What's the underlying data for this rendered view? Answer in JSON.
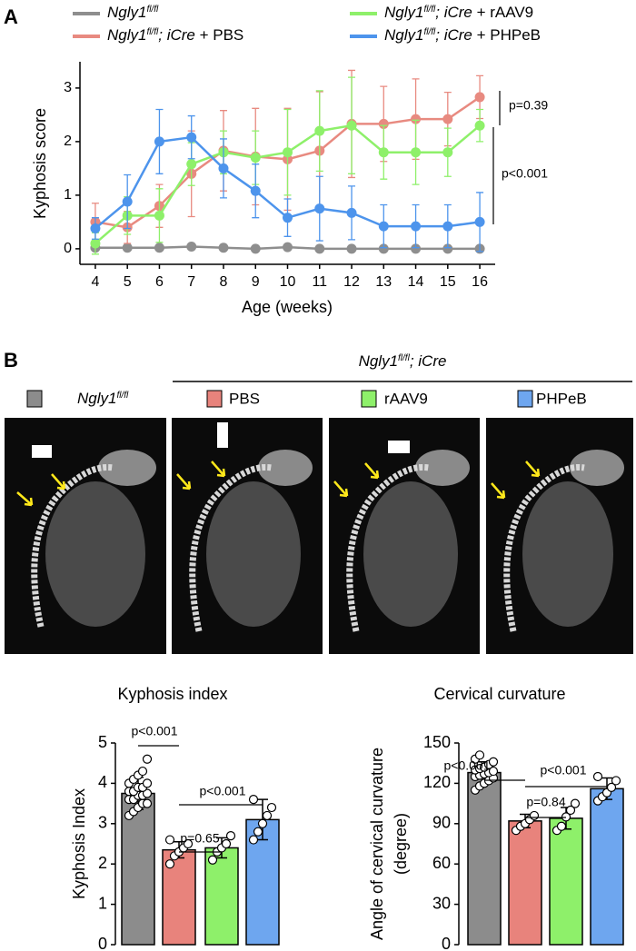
{
  "chart_data": [
    {
      "type": "line",
      "panel": "A",
      "ylabel": "Kyphosis score",
      "xlabel": "Age (weeks)",
      "x": [
        4,
        5,
        6,
        7,
        8,
        9,
        10,
        11,
        12,
        13,
        14,
        15,
        16
      ],
      "xlim": [
        3.52,
        16.48
      ],
      "xticks": [
        4,
        5,
        6,
        7,
        8,
        9,
        10,
        11,
        12,
        13,
        14,
        15,
        16
      ],
      "ylim": [
        -0.29,
        3.49
      ],
      "yticks": [
        0,
        1,
        2,
        3
      ],
      "series": [
        {
          "name": "Ngly1fl/fl",
          "color": "#8e8e8e",
          "values": [
            0.02,
            0.02,
            0.02,
            0.04,
            0.02,
            0,
            0.03,
            0,
            0,
            0,
            0,
            0,
            0
          ],
          "errors": [
            0.05,
            0.05,
            0.05,
            0.05,
            0.05,
            0.03,
            0.05,
            0.03,
            0.03,
            0.03,
            0.03,
            0.03,
            0.03
          ]
        },
        {
          "name": "Ngly1fl/fl; iCre + PBS",
          "color": "#e88a80",
          "values": [
            0.5,
            0.4,
            0.8,
            1.4,
            1.83,
            1.72,
            1.67,
            1.83,
            2.33,
            2.33,
            2.42,
            2.42,
            2.83
          ],
          "errors": [
            0.35,
            0.3,
            0.4,
            0.8,
            0.75,
            0.9,
            0.95,
            1.1,
            1.0,
            0.7,
            0.75,
            0.5,
            0.4
          ]
        },
        {
          "name": "Ngly1fl/fl; iCre + rAAV9",
          "color": "#8ef06a",
          "values": [
            0.1,
            0.62,
            0.62,
            1.58,
            1.8,
            1.7,
            1.8,
            2.2,
            2.3,
            1.8,
            1.8,
            1.8,
            2.3
          ],
          "errors": [
            0.2,
            0.35,
            0.5,
            0.4,
            0.4,
            0.5,
            0.8,
            0.75,
            0.9,
            0.5,
            0.6,
            0.45,
            0.3
          ]
        },
        {
          "name": "Ngly1fl/fl; iCre + PHPeB",
          "color": "#4d94ec",
          "values": [
            0.38,
            0.88,
            2.0,
            2.08,
            1.5,
            1.08,
            0.58,
            0.75,
            0.67,
            0.42,
            0.42,
            0.42,
            0.5
          ],
          "errors": [
            0.2,
            0.5,
            0.6,
            0.4,
            0.55,
            0.5,
            0.35,
            0.6,
            0.5,
            0.4,
            0.4,
            0.4,
            0.55
          ]
        }
      ],
      "annotations": [
        "p=0.39",
        "p<0.001"
      ]
    },
    {
      "type": "bar",
      "title": "Kyphosis index",
      "ylabel": [
        "Kyphosis Index"
      ],
      "categories": [
        null,
        null,
        null,
        null
      ],
      "values": [
        3.75,
        2.35,
        2.4,
        3.1
      ],
      "errors": [
        0.4,
        0.2,
        0.25,
        0.5
      ],
      "colors": [
        "#8c8c8c",
        "#e8837c",
        "#8ef06a",
        "#6ea6ef"
      ],
      "points": [
        [
          3.2,
          3.3,
          3.4,
          3.5,
          3.5,
          3.6,
          3.6,
          3.7,
          3.7,
          3.75,
          3.8,
          3.8,
          3.9,
          3.9,
          4.0,
          4.0,
          4.1,
          4.2,
          4.3,
          4.6
        ],
        [
          2.0,
          2.2,
          2.3,
          2.4,
          2.5,
          2.6
        ],
        [
          2.1,
          2.3,
          2.4,
          2.5,
          2.7
        ],
        [
          2.6,
          2.8,
          3.0,
          3.2,
          3.4,
          3.6
        ]
      ],
      "ylim": [
        0,
        5
      ],
      "yticks": [
        0,
        1,
        2,
        3,
        4,
        5
      ],
      "annotations": [
        "p<0.001",
        "p=0.65",
        "p<0.001"
      ]
    },
    {
      "type": "bar",
      "title": "Cervical curvature",
      "ylabel": [
        "Angle of cervical curvature",
        "(degree)"
      ],
      "categories": [
        null,
        null,
        null,
        null
      ],
      "values": [
        128,
        92,
        94,
        116
      ],
      "errors": [
        8,
        5,
        8,
        8
      ],
      "colors": [
        "#8c8c8c",
        "#e8837c",
        "#8ef06a",
        "#6ea6ef"
      ],
      "points": [
        [
          115,
          118,
          120,
          122,
          124,
          125,
          126,
          127,
          128,
          129,
          130,
          131,
          132,
          134,
          136,
          138,
          141
        ],
        [
          85,
          88,
          90,
          93,
          96
        ],
        [
          85,
          88,
          95,
          100,
          105
        ],
        [
          107,
          110,
          113,
          117,
          122,
          125
        ]
      ],
      "ylim": [
        0,
        150
      ],
      "yticks": [
        0,
        30,
        60,
        90,
        120,
        150
      ],
      "annotations": [
        "p<0.001",
        "p=0.84",
        "p<0.001"
      ]
    }
  ],
  "panel_b": {
    "label": "B",
    "group_header": "Ngly1fl/fl; iCre",
    "legend": [
      {
        "name": "Ngly1fl/fl",
        "color": "#8c8c8c"
      },
      {
        "name": "PBS",
        "color": "#e8837c"
      },
      {
        "name": "rAAV9",
        "color": "#8ef06a"
      },
      {
        "name": "PHPeB",
        "color": "#6ea6ef"
      }
    ]
  }
}
